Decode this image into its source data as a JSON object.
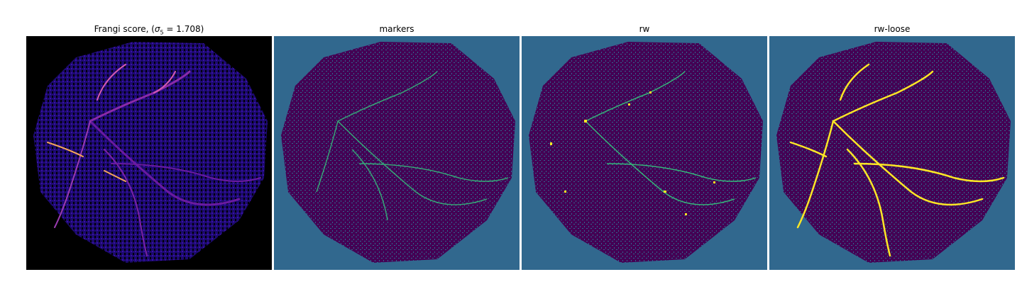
{
  "figure": {
    "panels": [
      {
        "title_main": "Frangi score, (",
        "title_sigma": "σ",
        "title_sub": "5",
        "title_value": " = 1.708)",
        "image": "frangi-vesselness-map",
        "colormap": "magma",
        "background_color": "#000000"
      },
      {
        "title": "markers",
        "image": "marker-label-map",
        "colormap": "viridis",
        "background_color": "#31688e"
      },
      {
        "title": "rw",
        "image": "random-walker-segmentation",
        "colormap": "viridis",
        "background_color": "#31688e"
      },
      {
        "title": "rw-loose",
        "image": "random-walker-loose-segmentation",
        "colormap": "viridis",
        "background_color": "#31688e"
      }
    ],
    "colors": {
      "dark_purple": "#440154",
      "teal": "#35b779",
      "cyan": "#21918c",
      "yellow": "#fde725",
      "frangi_blue": "#2a0a8f",
      "frangi_pink": "#d45ab0",
      "frangi_orange": "#f3a45a"
    }
  }
}
